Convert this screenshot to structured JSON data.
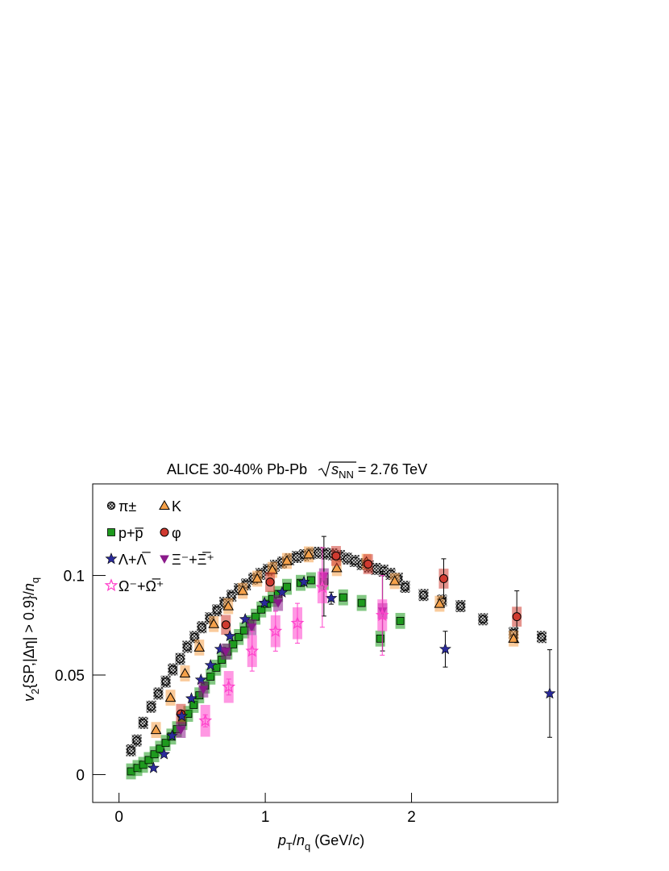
{
  "chart_data": {
    "type": "scatter",
    "title": "ALICE 30-40% Pb-Pb",
    "energy_label": {
      "symbol": "s",
      "subscript": "NN",
      "value": "= 2.76 TeV"
    },
    "xlabel": [
      {
        "text": "p",
        "style": "italic"
      },
      {
        "text": "T",
        "style": "sub"
      },
      {
        "text": "/",
        "style": "normal"
      },
      {
        "text": "n",
        "style": "italic"
      },
      {
        "text": "q",
        "style": "sub"
      },
      {
        "text": " (GeV/",
        "style": "normal"
      },
      {
        "text": "c",
        "style": "italic"
      },
      {
        "text": ")",
        "style": "normal"
      }
    ],
    "ylabel": [
      {
        "text": "v",
        "style": "italic"
      },
      {
        "text": "2",
        "style": "sub"
      },
      {
        "text": "{SP,|Δη| > 0.9}/",
        "style": "normal"
      },
      {
        "text": "n",
        "style": "italic"
      },
      {
        "text": "q",
        "style": "sub"
      }
    ],
    "xlim": [
      -0.18,
      3.0
    ],
    "ylim": [
      -0.014,
      0.146
    ],
    "xticks": [
      0,
      1,
      2
    ],
    "yticks": [
      0,
      0.05,
      0.1
    ],
    "series": [
      {
        "name": "π±",
        "marker": "circle-hatched",
        "color": "#000000",
        "sys": 0.003,
        "x": [
          0.082,
          0.121,
          0.165,
          0.22,
          0.269,
          0.319,
          0.368,
          0.418,
          0.467,
          0.516,
          0.566,
          0.621,
          0.67,
          0.72,
          0.769,
          0.819,
          0.868,
          0.918,
          0.967,
          1.016,
          1.066,
          1.115,
          1.165,
          1.214,
          1.264,
          1.313,
          1.363,
          1.412,
          1.462,
          1.511,
          1.56,
          1.61,
          1.659,
          1.709,
          1.758,
          1.808,
          1.857,
          1.907,
          1.956,
          2.082,
          2.209,
          2.335,
          2.489,
          2.698,
          2.89
        ],
        "values": [
          0.0122,
          0.0171,
          0.026,
          0.0341,
          0.0407,
          0.0467,
          0.0528,
          0.0581,
          0.0642,
          0.0691,
          0.074,
          0.0785,
          0.0825,
          0.0862,
          0.0898,
          0.0931,
          0.0955,
          0.0984,
          0.1008,
          0.1028,
          0.1049,
          0.1065,
          0.1081,
          0.1093,
          0.1102,
          0.111,
          0.1114,
          0.111,
          0.1106,
          0.1098,
          0.1085,
          0.1073,
          0.1057,
          0.1045,
          0.1033,
          0.1024,
          0.1008,
          0.0984,
          0.0943,
          0.0902,
          0.0874,
          0.0846,
          0.078,
          0.0711,
          0.0691
        ]
      },
      {
        "name": "K",
        "marker": "triangle-up",
        "color": "#f5a14a",
        "sys": 0.004,
        "x": [
          0.253,
          0.352,
          0.451,
          0.549,
          0.648,
          0.747,
          0.846,
          0.945,
          1.049,
          1.148,
          1.297,
          1.489,
          1.692,
          1.885,
          2.192,
          2.698
        ],
        "values": [
          0.0224,
          0.0386,
          0.0508,
          0.0638,
          0.0756,
          0.0846,
          0.0923,
          0.0984,
          0.1028,
          0.1073,
          0.1106,
          0.1037,
          0.1069,
          0.0972,
          0.0858,
          0.0683
        ]
      },
      {
        "name": "p+p̅",
        "marker": "square",
        "color": "#1e9a1e",
        "sys": 0.004,
        "x": [
          0.082,
          0.126,
          0.165,
          0.203,
          0.242,
          0.28,
          0.319,
          0.357,
          0.396,
          0.434,
          0.473,
          0.511,
          0.549,
          0.588,
          0.626,
          0.665,
          0.703,
          0.742,
          0.78,
          0.819,
          0.857,
          0.896,
          0.934,
          0.973,
          1.011,
          1.049,
          1.088,
          1.148,
          1.242,
          1.313,
          1.401,
          1.533,
          1.659,
          1.786,
          1.923
        ],
        "values": [
          0.0016,
          0.0033,
          0.0049,
          0.0073,
          0.0102,
          0.013,
          0.0159,
          0.0191,
          0.0228,
          0.0264,
          0.0305,
          0.035,
          0.0398,
          0.0447,
          0.0492,
          0.0537,
          0.0577,
          0.0618,
          0.0654,
          0.0691,
          0.0724,
          0.076,
          0.0793,
          0.0829,
          0.0858,
          0.0882,
          0.0907,
          0.0943,
          0.0963,
          0.0976,
          0.0967,
          0.089,
          0.0862,
          0.0683,
          0.0772
        ]
      },
      {
        "name": "φ",
        "marker": "circle",
        "color": "#d03a30",
        "sys": 0.005,
        "x": [
          0.423,
          0.731,
          1.033,
          1.484,
          1.703,
          2.22,
          2.72
        ],
        "values": [
          0.0305,
          0.0752,
          0.0967,
          0.1098,
          0.1057,
          0.0984,
          0.0793
        ],
        "errors": [
          null,
          null,
          null,
          null,
          null,
          0.01,
          0.013
        ]
      },
      {
        "name": "Λ+Λ̅",
        "marker": "star",
        "color": "#2a2a9a",
        "x": [
          0.236,
          0.308,
          0.363,
          0.429,
          0.495,
          0.56,
          0.626,
          0.692,
          0.758,
          0.863,
          0.995,
          1.115,
          1.264,
          1.451,
          2.231,
          2.945
        ],
        "values": [
          0.0033,
          0.0102,
          0.0195,
          0.0293,
          0.0382,
          0.0476,
          0.0549,
          0.063,
          0.0695,
          0.078,
          0.0862,
          0.0915,
          0.0967,
          0.0886,
          0.063,
          0.0407
        ],
        "errors": [
          null,
          null,
          null,
          null,
          null,
          null,
          null,
          null,
          null,
          null,
          null,
          null,
          null,
          0.003,
          0.009,
          0.022
        ]
      },
      {
        "name": "Ξ⁻+Ξ̅⁺",
        "marker": "triangle-down",
        "color": "#8a1a8a",
        "sys": 0.004,
        "x": [
          0.423,
          0.577,
          0.731,
          0.907,
          1.088,
          1.401,
          1.802
        ],
        "values": [
          0.0224,
          0.0427,
          0.0618,
          0.074,
          0.0862,
          0.0996,
          0.0821
        ],
        "errors": [
          null,
          null,
          null,
          null,
          null,
          0.02,
          0.02
        ]
      },
      {
        "name": "Ω⁻+Ω̅⁺",
        "marker": "star-open",
        "color": "#ff44cc",
        "sys": 0.008,
        "x": [
          0.59,
          0.75,
          0.91,
          1.07,
          1.22,
          1.39,
          1.8
        ],
        "values": [
          0.027,
          0.044,
          0.062,
          0.072,
          0.076,
          0.094,
          0.08
        ],
        "errors": [
          0.003,
          0.004,
          0.01,
          0.01,
          0.01,
          0.02,
          0.02
        ]
      }
    ]
  }
}
